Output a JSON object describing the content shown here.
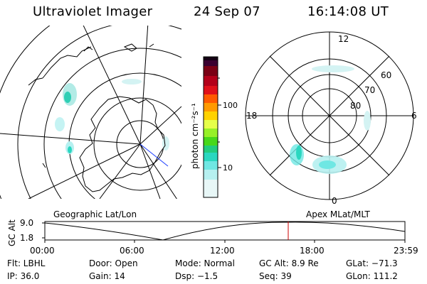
{
  "header": {
    "instrument": "Ultraviolet Imager",
    "date": "24 Sep 07",
    "time": "16:14:08 UT"
  },
  "colorbar": {
    "unit_label": "photon cm⁻²s⁻¹",
    "tick_100": "100",
    "tick_10": "10",
    "scale": "log",
    "colors_top_to_bottom": [
      "#140014",
      "#3a0030",
      "#7a0015",
      "#d4001d",
      "#ff5a00",
      "#ff9a00",
      "#ffd200",
      "#e6ff4a",
      "#97f027",
      "#47d81a",
      "#22cc7e",
      "#2ad7c0",
      "#6fe7e3",
      "#b6f0f0",
      "#e8f7f7"
    ]
  },
  "right_polar": {
    "labels": {
      "top": "12",
      "bottom": "0",
      "left": "18",
      "right": "6"
    },
    "lat_labels": [
      "60",
      "70",
      "80"
    ]
  },
  "timeline": {
    "left_title": "Geographic Lat/Lon",
    "right_title": "Apex MLat/MLT",
    "y_axis_label": "GC Alt",
    "y_top": "9.0",
    "y_bottom": "1.8",
    "x_ticks": [
      "00:00",
      "06:00",
      "12:00",
      "18:00",
      "23:59"
    ],
    "current_time_marker": "16:14:08",
    "marker_color": "#cc0000"
  },
  "info": {
    "row1": {
      "flt": "Flt: LBHL",
      "door": "Door: Open",
      "mode": "Mode:  Normal",
      "gcalt": "GC Alt: 8.9 Re",
      "glat": "GLat: −71.3"
    },
    "row2": {
      "ip": "IP: 36.0",
      "gain": "Gain: 14",
      "dsp": "Dsp:    −1.5",
      "seq": "Seq: 39",
      "glon": "GLon: 111.2"
    }
  }
}
